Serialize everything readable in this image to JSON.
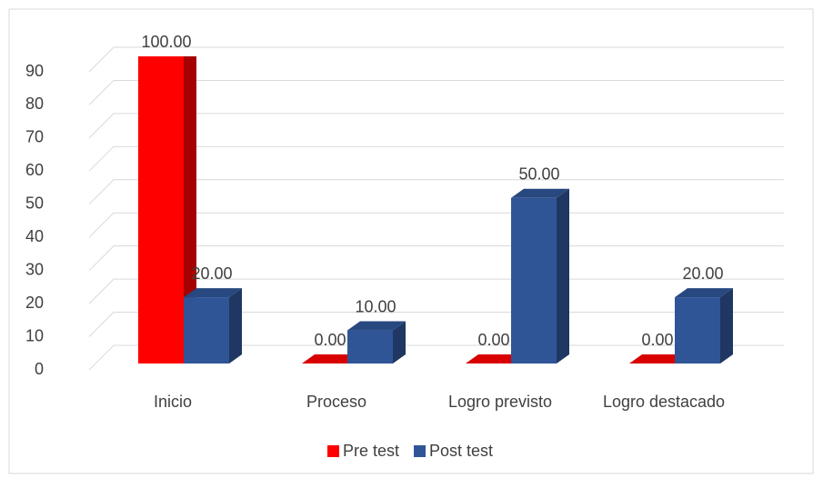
{
  "chart_data": {
    "type": "bar3d",
    "categories": [
      "Inicio",
      "Proceso",
      "Logro previsto",
      "Logro destacado"
    ],
    "series": [
      {
        "name": "Pre test",
        "color": "#ff0000",
        "values": [
          100,
          0,
          0,
          0
        ],
        "value_labels": [
          "100.00",
          "0.00",
          "0.00",
          "0.00"
        ]
      },
      {
        "name": "Post test",
        "color": "#2f5597",
        "values": [
          20,
          10,
          50,
          20
        ],
        "value_labels": [
          "20.00",
          "10.00",
          "50.00",
          "20.00"
        ]
      }
    ],
    "ylim": [
      0,
      90
    ],
    "yticks": [
      0,
      10,
      20,
      30,
      40,
      50,
      60,
      70,
      80,
      90
    ],
    "grid": true,
    "legend": "bottom"
  }
}
